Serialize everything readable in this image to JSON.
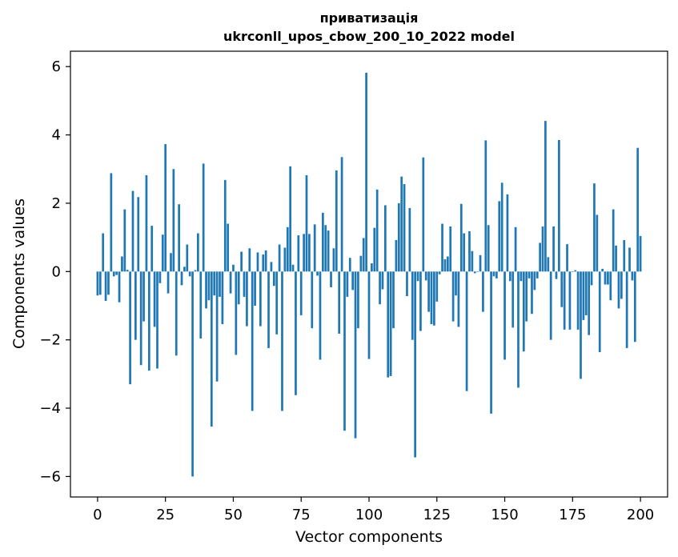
{
  "chart_data": {
    "type": "bar",
    "title": "приватизація",
    "subtitle": "ukrconll_upos_cbow_200_10_2022 model",
    "xlabel": "Vector components",
    "ylabel": "Components values",
    "xlim": [
      -10,
      210
    ],
    "ylim": [
      -6.6,
      6.45
    ],
    "xticks": [
      0,
      25,
      50,
      75,
      100,
      125,
      150,
      175,
      200
    ],
    "xtick_labels": [
      "0",
      "25",
      "50",
      "75",
      "100",
      "125",
      "150",
      "175",
      "200"
    ],
    "yticks": [
      -6,
      -4,
      -2,
      0,
      2,
      4,
      6
    ],
    "ytick_labels": [
      "−6",
      "−4",
      "−2",
      "0",
      "2",
      "4",
      "6"
    ],
    "bar_color": "#1f77b4",
    "values": [
      -0.7,
      -0.68,
      1.12,
      -0.86,
      -0.68,
      2.88,
      -0.14,
      -0.1,
      -0.9,
      0.44,
      1.82,
      0.05,
      -3.3,
      2.36,
      -2.0,
      2.18,
      -2.74,
      -1.46,
      2.82,
      -2.9,
      1.34,
      -1.62,
      -2.84,
      -0.34,
      1.08,
      3.73,
      -0.64,
      0.54,
      3.0,
      -2.46,
      1.97,
      -0.4,
      0.14,
      0.79,
      -0.14,
      -6.0,
      0.04,
      1.12,
      -1.96,
      3.16,
      -1.08,
      -0.84,
      -4.54,
      -0.7,
      -3.22,
      -0.74,
      -1.54,
      2.68,
      1.4,
      -0.64,
      0.2,
      -2.44,
      -0.96,
      0.58,
      -0.74,
      -1.6,
      0.68,
      -4.08,
      -1.0,
      0.56,
      -1.6,
      0.5,
      0.62,
      -2.24,
      0.28,
      -0.42,
      -1.84,
      0.79,
      -4.08,
      0.7,
      1.3,
      3.08,
      0.2,
      -3.62,
      1.06,
      -1.28,
      1.1,
      2.82,
      1.1,
      -1.66,
      1.38,
      -0.12,
      -2.58,
      1.72,
      1.36,
      1.2,
      -0.46,
      0.68,
      2.96,
      -1.82,
      3.35,
      -4.66,
      -0.74,
      0.4,
      -0.54,
      -4.88,
      -1.66,
      0.46,
      0.98,
      5.82,
      -2.56,
      0.24,
      1.28,
      2.4,
      -0.96,
      -0.52,
      1.94,
      -3.1,
      -3.06,
      -1.66,
      0.92,
      2.0,
      2.78,
      2.56,
      -0.72,
      1.86,
      -2.0,
      -5.44,
      -0.28,
      -1.74,
      3.34,
      -0.26,
      -1.18,
      -1.54,
      -1.58,
      -0.88,
      -0.08,
      1.4,
      0.36,
      0.44,
      1.32,
      -1.46,
      -0.7,
      -1.62,
      1.98,
      1.12,
      -3.5,
      1.18,
      0.6,
      -0.05,
      0.0,
      0.48,
      -1.18,
      3.84,
      1.36,
      -4.16,
      -0.14,
      -0.2,
      2.06,
      2.6,
      -2.58,
      2.26,
      -0.28,
      -1.64,
      1.3,
      -3.4,
      -0.28,
      -2.34,
      -1.46,
      -0.2,
      -1.24,
      -0.54,
      -0.2,
      0.84,
      1.32,
      4.41,
      0.42,
      -2.0,
      1.32,
      -0.22,
      3.85,
      -1.04,
      -1.7,
      0.8,
      -1.7,
      0.0,
      0.04,
      -1.7,
      -3.14,
      -1.42,
      -1.28,
      -1.86,
      -0.4,
      2.58,
      1.66,
      -2.36,
      0.08,
      -0.38,
      -0.38,
      -0.84,
      1.82,
      0.76,
      -1.08,
      -0.8,
      0.92,
      -2.24,
      0.7,
      -0.26,
      -2.06,
      3.62,
      1.04
    ]
  }
}
